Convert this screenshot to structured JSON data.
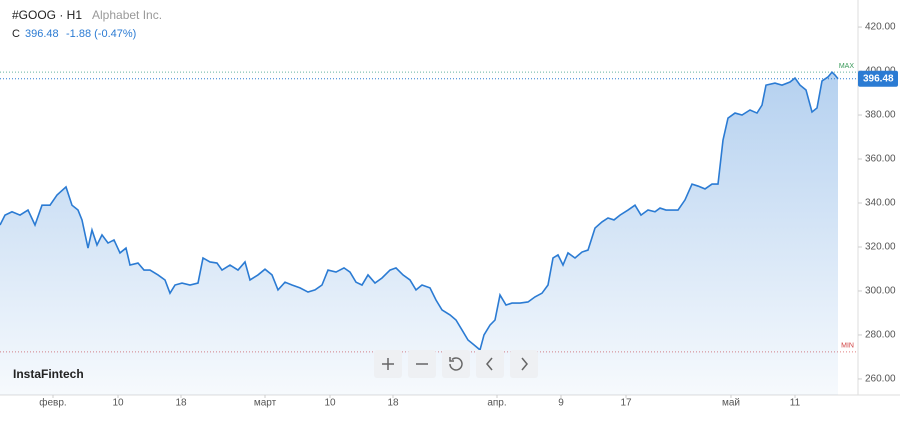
{
  "chart_data": {
    "type": "area",
    "title": "#GOOG · H1",
    "subtitle": "Alphabet Inc.",
    "close_label": "C",
    "last_value": 396.48,
    "change_label": "-1.88 (-0.47%)",
    "watermark": "InstaFintech",
    "max_label": "MAX",
    "max_level": 399.5,
    "min_label": "MIN",
    "min_level": 272.3,
    "x": [
      0,
      5,
      12,
      20,
      28,
      35,
      42,
      50,
      57,
      66,
      72,
      78,
      82,
      88,
      92,
      97,
      102,
      108,
      114,
      120,
      126,
      130,
      138,
      144,
      150,
      158,
      165,
      170,
      175,
      182,
      190,
      198,
      203,
      210,
      217,
      222,
      230,
      238,
      245,
      250,
      258,
      265,
      272,
      278,
      285,
      292,
      300,
      308,
      315,
      322,
      328,
      336,
      344,
      350,
      356,
      362,
      368,
      375,
      382,
      390,
      396,
      403,
      410,
      416,
      422,
      430,
      436,
      442,
      450,
      456,
      462,
      468,
      474,
      480,
      484,
      490,
      495,
      500,
      506,
      512,
      520,
      528,
      535,
      542,
      548,
      553,
      558,
      563,
      568,
      575,
      582,
      588,
      595,
      602,
      608,
      614,
      620,
      628,
      635,
      641,
      648,
      655,
      660,
      666,
      672,
      678,
      685,
      692,
      698,
      705,
      712,
      718,
      723,
      728,
      735,
      742,
      750,
      757,
      762,
      766,
      775,
      782,
      790,
      795,
      800,
      806,
      812,
      817,
      822,
      828,
      832,
      835,
      838
    ],
    "series": [
      {
        "name": "GOOG",
        "color": "#2b7bd3",
        "values": [
          330,
          334.5,
          336,
          334.5,
          336.8,
          330,
          339,
          339,
          343.6,
          347.3,
          339,
          336.8,
          332.3,
          319.5,
          327.7,
          320.9,
          325.5,
          321.8,
          323.2,
          317.3,
          319.5,
          311.8,
          312.7,
          309.5,
          309.5,
          307.3,
          305,
          299,
          302.7,
          303.6,
          302.7,
          303.6,
          315,
          313.2,
          312.7,
          309.5,
          311.8,
          309.5,
          313.2,
          305,
          307.3,
          309.9,
          307.3,
          300.5,
          304,
          302.7,
          301.4,
          299.5,
          300.5,
          302.7,
          309.5,
          308.6,
          310.5,
          308.6,
          304,
          302.7,
          307.3,
          303.6,
          305.9,
          309.5,
          310.5,
          307.3,
          305,
          300.5,
          302.7,
          301.4,
          295.9,
          291.4,
          289.1,
          286.8,
          282.3,
          277.7,
          275.5,
          273.2,
          280,
          284.5,
          286.8,
          298.2,
          293.6,
          294.5,
          294.5,
          295,
          297.3,
          299,
          302.7,
          315,
          316.4,
          311.8,
          317.3,
          315,
          317.7,
          318.6,
          328.6,
          331.4,
          333.2,
          332.3,
          334.5,
          336.8,
          339,
          334.5,
          336.8,
          336,
          337.7,
          336.8,
          336.8,
          336.8,
          341.4,
          348.6,
          347.7,
          346.4,
          348.6,
          348.6,
          368.6,
          378.6,
          380.9,
          380,
          382.3,
          380.9,
          384.5,
          393.6,
          394.5,
          393.6,
          395,
          396.8,
          393.6,
          391.4,
          381.4,
          383.2,
          395.5,
          397.3,
          399.5,
          398.2,
          396.48
        ]
      }
    ],
    "xlim": [
      0,
      858
    ],
    "xticks": [
      {
        "value": 53,
        "label": "февр."
      },
      {
        "value": 118,
        "label": "10"
      },
      {
        "value": 181,
        "label": "18"
      },
      {
        "value": 265,
        "label": "март"
      },
      {
        "value": 330,
        "label": "10"
      },
      {
        "value": 393,
        "label": "18"
      },
      {
        "value": 497,
        "label": "апр."
      },
      {
        "value": 561,
        "label": "9"
      },
      {
        "value": 626,
        "label": "17"
      },
      {
        "value": 731,
        "label": "май"
      },
      {
        "value": 795,
        "label": "11"
      }
    ],
    "ylim": [
      252.7,
      432.3
    ],
    "yticks": [
      {
        "value": 260,
        "label": "260.00"
      },
      {
        "value": 280,
        "label": "280.00"
      },
      {
        "value": 300,
        "label": "300.00"
      },
      {
        "value": 320,
        "label": "320.00"
      },
      {
        "value": 340,
        "label": "340.00"
      },
      {
        "value": 360,
        "label": "360.00"
      },
      {
        "value": 380,
        "label": "380.00"
      },
      {
        "value": 400,
        "label": "400.00"
      },
      {
        "value": 420,
        "label": "420.00"
      }
    ]
  }
}
